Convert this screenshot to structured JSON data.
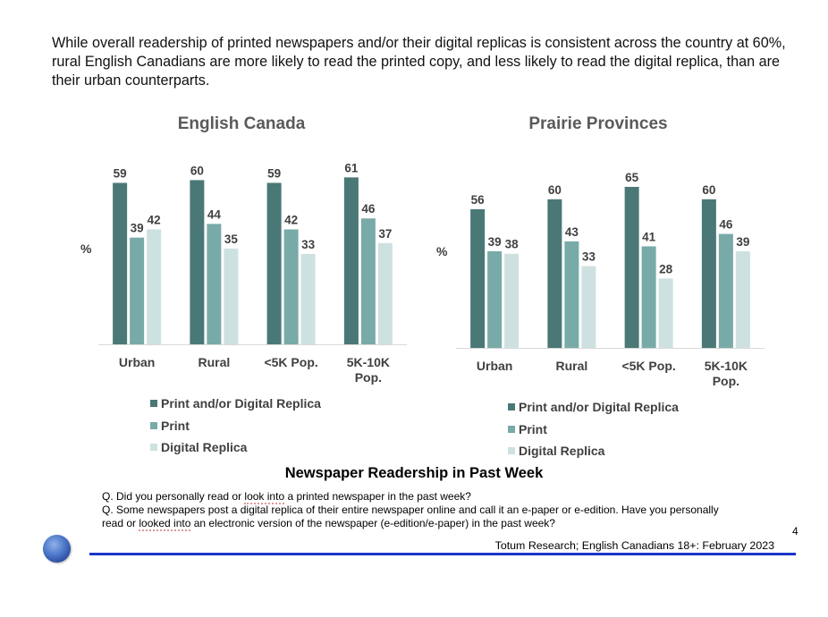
{
  "slide": {
    "headline": "While overall readership of printed newspapers and/or their digital replicas is consistent across the country at 60%, rural English Canadians are more likely to read the printed copy, and less likely to read the digital replica, than are their urban counterparts.",
    "main_title": "Newspaper Readership in Past Week",
    "question_1_pre": "Q. Did you personally read or ",
    "question_1_marked": "look into",
    "question_1_post": " a printed newspaper in the past week?",
    "question_2_pre": "Q. Some newspapers post a digital replica of their entire newspaper online and call it an e-paper or e-edition. Have you personally read or ",
    "question_2_marked": "looked into",
    "question_2_post": " an electronic version of the newspaper (e-edition/e-paper) in the past week?",
    "source": "Totum Research; English Canadians 18+: February 2023",
    "page_number": "4"
  },
  "colors": {
    "print_or_digital": "#4a7876",
    "print": "#78aaa8",
    "digital_replica": "#cde1e0"
  },
  "chart_data": [
    {
      "type": "bar",
      "title": "English Canada",
      "ylabel": "%",
      "categories": [
        "Urban",
        "Rural",
        "<5K Pop.",
        "5K-10K Pop."
      ],
      "category_lines": [
        [
          "Urban"
        ],
        [
          "Rural"
        ],
        [
          "<5K Pop."
        ],
        [
          "5K-10K",
          "Pop."
        ]
      ],
      "ylim": [
        0,
        70
      ],
      "series": [
        {
          "name": "Print and/or Digital Replica",
          "values": [
            59,
            60,
            59,
            61
          ]
        },
        {
          "name": "Print",
          "values": [
            39,
            44,
            42,
            46
          ]
        },
        {
          "name": "Digital Replica",
          "values": [
            42,
            35,
            33,
            37
          ]
        }
      ],
      "legend": "bottom",
      "grid": false
    },
    {
      "type": "bar",
      "title": "Prairie Provinces",
      "ylabel": "%",
      "categories": [
        "Urban",
        "Rural",
        "<5K Pop.",
        "5K-10K Pop."
      ],
      "category_lines": [
        [
          "Urban"
        ],
        [
          "Rural"
        ],
        [
          "<5K Pop."
        ],
        [
          "5K-10K",
          "Pop."
        ]
      ],
      "ylim": [
        0,
        70
      ],
      "series": [
        {
          "name": "Print and/or Digital Replica",
          "values": [
            56,
            60,
            65,
            60
          ]
        },
        {
          "name": "Print",
          "values": [
            39,
            43,
            41,
            46
          ]
        },
        {
          "name": "Digital Replica",
          "values": [
            38,
            33,
            28,
            39
          ]
        }
      ],
      "legend": "bottom",
      "grid": false
    }
  ]
}
